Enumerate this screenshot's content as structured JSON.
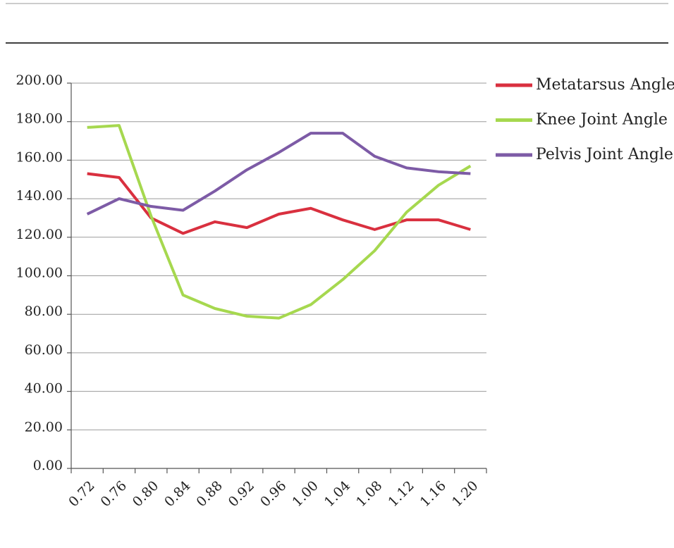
{
  "chart_data": {
    "type": "line",
    "categories": [
      "0.72",
      "0.76",
      "0.80",
      "0.84",
      "0.88",
      "0.92",
      "0.96",
      "1.00",
      "1.04",
      "1.08",
      "1.12",
      "1.16",
      "1.20"
    ],
    "series": [
      {
        "name": "Metatarsus Angle",
        "color": "#d9303f",
        "values": [
          153,
          151,
          130,
          122,
          128,
          125,
          132,
          135,
          129,
          124,
          129,
          129,
          124
        ]
      },
      {
        "name": "Knee Joint Angle",
        "color": "#a6d84f",
        "values": [
          177,
          178,
          131,
          90,
          83,
          79,
          78,
          85,
          98,
          113,
          133,
          147,
          157
        ]
      },
      {
        "name": "Pelvis Joint Angle",
        "color": "#7d5ba6",
        "values": [
          132,
          140,
          136,
          134,
          144,
          155,
          164,
          174,
          174,
          162,
          156,
          154,
          153
        ]
      }
    ],
    "ylim": [
      0,
      200
    ],
    "yticks": [
      {
        "value": 0,
        "label": "0.00"
      },
      {
        "value": 20,
        "label": "20.00"
      },
      {
        "value": 40,
        "label": "40.00"
      },
      {
        "value": 60,
        "label": "60.00"
      },
      {
        "value": 80,
        "label": "80.00"
      },
      {
        "value": 100,
        "label": "100.00"
      },
      {
        "value": 120,
        "label": "120.00"
      },
      {
        "value": 140,
        "label": "140.00"
      },
      {
        "value": 160,
        "label": "160.00"
      },
      {
        "value": 180,
        "label": "180.00"
      },
      {
        "value": 200,
        "label": "200.00"
      }
    ],
    "grid": true,
    "legend": "right"
  }
}
